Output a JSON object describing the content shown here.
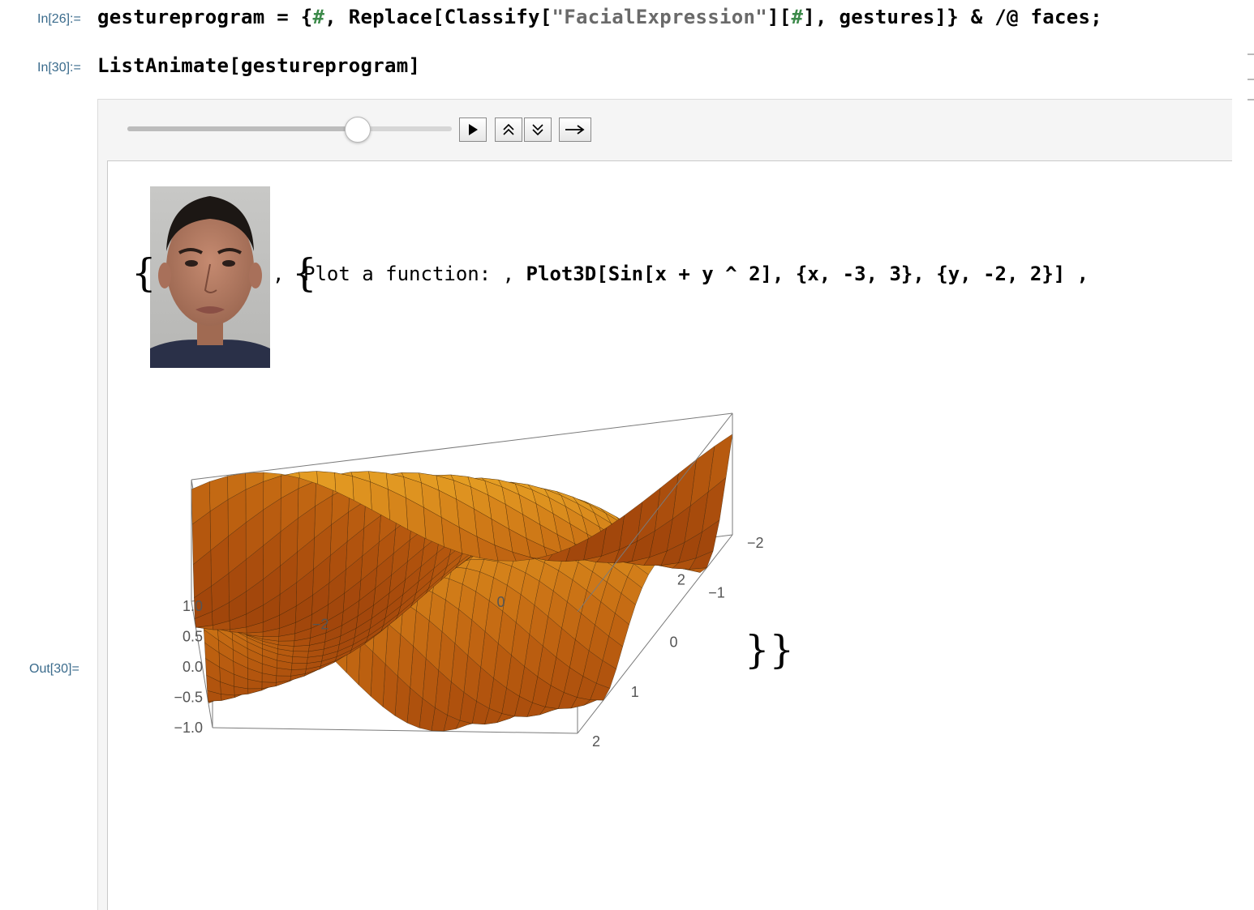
{
  "cells": {
    "in26_label": "In[26]:=",
    "in26": {
      "p1": "gestureprogram = {",
      "slot1": "#",
      "p2": ", Replace[Classify[",
      "str": "\"FacialExpression\"",
      "p3": "][",
      "slot2": "#",
      "p4": "], gestures]} & /@ faces;"
    },
    "in30_label": "In[30]:=",
    "in30": "ListAnimate[gestureprogram]",
    "out30_label": "Out[30]="
  },
  "animator": {
    "slider_value_fraction": 0.71,
    "buttons": [
      "play-icon",
      "faster-icon",
      "slower-icon",
      "direction-icon"
    ]
  },
  "output": {
    "open_brace": "{",
    "comma1": ",",
    "inner_open": "{",
    "text_part": "Plot a function: ,",
    "plot_code": "Plot3D[Sin[x + y ^ 2], {x, -3, 3}, {y, -2, 2}] ,",
    "close_braces": "}}",
    "face_image": "neutral-face-photo"
  },
  "chart_data": {
    "type": "surface3d",
    "function": "Sin[x + y^2]",
    "x_range": [
      -3,
      3
    ],
    "y_range": [
      -2,
      2
    ],
    "z_range": [
      -1,
      1
    ],
    "z_ticks": [
      "1.0",
      "0.5",
      "0.0",
      "−0.5",
      "−1.0"
    ],
    "x_ticks": [
      "−2",
      "0",
      "2"
    ],
    "y_ticks": [
      "2",
      "1",
      "0",
      "−1",
      "−2"
    ],
    "colors": {
      "surface_light": "#ffd84a",
      "surface_mid": "#f5a030",
      "surface_dark": "#7a3a08",
      "mesh": "#3a2208"
    }
  }
}
